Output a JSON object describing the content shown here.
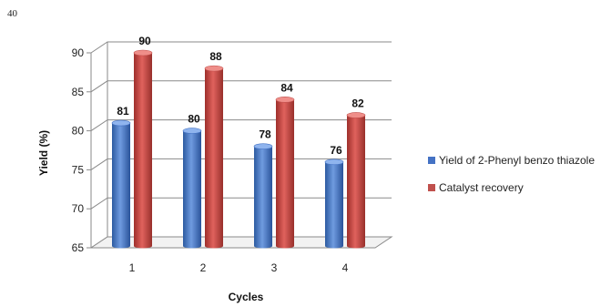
{
  "page_number": "40",
  "chart_data": {
    "type": "bar",
    "title": "",
    "xlabel": "Cycles",
    "ylabel": "Yield (%)",
    "categories": [
      "1",
      "2",
      "3",
      "4"
    ],
    "series": [
      {
        "name": "Yield of 2-Phenyl benzo thiazole",
        "values": [
          81,
          80,
          78,
          76
        ],
        "color": "#4472C4"
      },
      {
        "name": "Catalyst recovery",
        "values": [
          90,
          88,
          84,
          82
        ],
        "color": "#C0504D"
      }
    ],
    "yticks": [
      65,
      70,
      75,
      80,
      85,
      90
    ],
    "ylim": [
      65,
      90
    ],
    "grid": true,
    "legend_position": "right"
  }
}
